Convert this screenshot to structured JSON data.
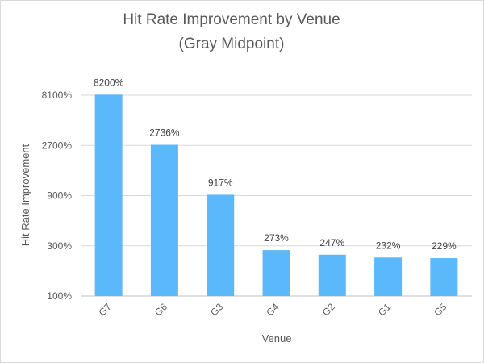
{
  "chart_data": {
    "type": "bar",
    "title": "Hit Rate Improvement by Venue",
    "subtitle": "(Gray Midpoint)",
    "xlabel": "Venue",
    "ylabel": "Hit Rate Improvement",
    "y_scale": "log",
    "ylim": [
      100,
      8100
    ],
    "y_ticks": [
      100,
      300,
      900,
      2700,
      8100
    ],
    "y_tick_labels": [
      "100%",
      "300%",
      "900%",
      "2700%",
      "8100%"
    ],
    "grid": true,
    "legend": "none",
    "bar_color": "#5bb8fb",
    "categories": [
      "G7",
      "G6",
      "G3",
      "G4",
      "G2",
      "G1",
      "G5"
    ],
    "values": [
      8200,
      2736,
      917,
      273,
      247,
      232,
      229
    ],
    "data_labels": [
      "8200%",
      "2736%",
      "917%",
      "273%",
      "247%",
      "232%",
      "229%"
    ]
  }
}
